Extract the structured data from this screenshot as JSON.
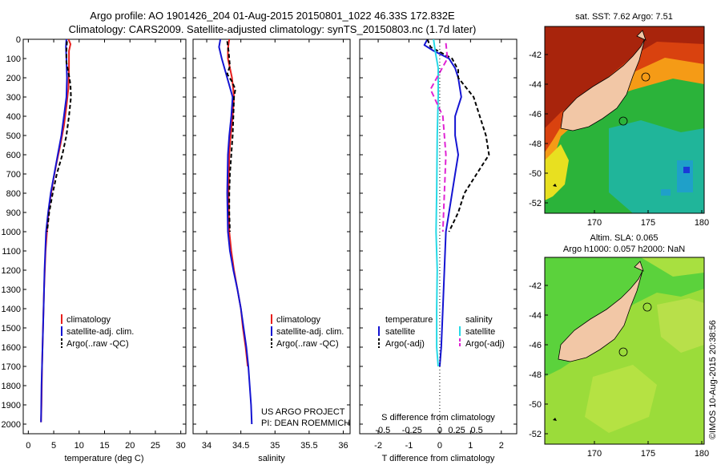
{
  "header": {
    "title_line1": "Argo profile: AO 1901426_204 01-Aug-2015 20150801_1022 46.33S 172.832E",
    "title_line2": "Climatology: CARS2009. Satellite-adjusted climatology: synTS_20150803.nc (1.7d later)"
  },
  "credits": {
    "project": "US ARGO PROJECT",
    "pi": "PI: DEAN ROEMMICH"
  },
  "watermark": "©IMOS 10-Aug-2015 20:38:56",
  "colors": {
    "climatology": "#e8201e",
    "satellite": "#1414d2",
    "argo": "#000000",
    "s_satellite": "#27d9e6",
    "s_argo": "#e024d4",
    "land": "#f2c7a6"
  },
  "chart_data": [
    {
      "type": "line",
      "id": "temperature",
      "xlabel": "temperature (deg C)",
      "xlim": [
        -1,
        31
      ],
      "ylim": [
        2050,
        0
      ],
      "xticks": [
        0,
        5,
        10,
        15,
        20,
        25,
        30
      ],
      "yticks": [
        0,
        100,
        200,
        300,
        400,
        500,
        600,
        700,
        800,
        900,
        1000,
        1100,
        1200,
        1300,
        1400,
        1500,
        1600,
        1700,
        1800,
        1900,
        2000
      ],
      "legend": [
        "climatology",
        "satellite-adj. clim.",
        "Argo(..raw -QC)"
      ],
      "series": [
        {
          "name": "climatology",
          "color": "#e8201e",
          "dash": "",
          "points": [
            [
              7.9,
              0
            ],
            [
              8.3,
              25
            ],
            [
              8.0,
              60
            ],
            [
              8.0,
              150
            ],
            [
              7.9,
              250
            ],
            [
              7.5,
              350
            ],
            [
              7.0,
              450
            ],
            [
              6.3,
              550
            ],
            [
              5.5,
              650
            ],
            [
              4.8,
              750
            ],
            [
              4.2,
              850
            ],
            [
              3.8,
              950
            ],
            [
              3.4,
              1100
            ],
            [
              3.1,
              1300
            ],
            [
              2.9,
              1500
            ],
            [
              2.7,
              1700
            ],
            [
              2.6,
              1900
            ],
            [
              2.5,
              1990
            ]
          ]
        },
        {
          "name": "satellite-adj. clim.",
          "color": "#1414d2",
          "dash": "",
          "points": [
            [
              7.5,
              0
            ],
            [
              7.4,
              40
            ],
            [
              7.5,
              100
            ],
            [
              7.6,
              200
            ],
            [
              7.5,
              300
            ],
            [
              7.0,
              400
            ],
            [
              6.5,
              500
            ],
            [
              5.8,
              600
            ],
            [
              5.1,
              700
            ],
            [
              4.4,
              800
            ],
            [
              3.9,
              900
            ],
            [
              3.5,
              1000
            ],
            [
              3.2,
              1200
            ],
            [
              3.0,
              1400
            ],
            [
              2.8,
              1600
            ],
            [
              2.6,
              1800
            ],
            [
              2.5,
              1990
            ]
          ]
        },
        {
          "name": "Argo(..raw -QC)",
          "color": "#000000",
          "dash": "5,3",
          "points": [
            [
              7.6,
              10
            ],
            [
              7.5,
              60
            ],
            [
              7.5,
              120
            ],
            [
              8.1,
              200
            ],
            [
              8.3,
              240
            ],
            [
              8.4,
              300
            ],
            [
              8.0,
              400
            ],
            [
              7.5,
              500
            ],
            [
              6.7,
              600
            ],
            [
              5.6,
              700
            ],
            [
              4.8,
              800
            ],
            [
              4.1,
              900
            ],
            [
              3.7,
              1000
            ]
          ]
        }
      ]
    },
    {
      "type": "line",
      "id": "salinity",
      "xlabel": "salinity",
      "xlim": [
        33.8,
        36.1
      ],
      "ylim": [
        2050,
        0
      ],
      "xticks": [
        34,
        34.5,
        35,
        35.5,
        36
      ],
      "legend": [
        "climatology",
        "satellite-adj. clim.",
        "Argo(..raw -QC)"
      ],
      "series": [
        {
          "name": "climatology",
          "color": "#e8201e",
          "dash": "",
          "points": [
            [
              34.33,
              0
            ],
            [
              34.31,
              50
            ],
            [
              34.31,
              100
            ],
            [
              34.37,
              200
            ],
            [
              34.4,
              300
            ],
            [
              34.38,
              400
            ],
            [
              34.35,
              500
            ],
            [
              34.33,
              600
            ],
            [
              34.32,
              800
            ],
            [
              34.33,
              1000
            ],
            [
              34.36,
              1100
            ],
            [
              34.4,
              1200
            ],
            [
              34.45,
              1300
            ],
            [
              34.5,
              1400
            ],
            [
              34.53,
              1500
            ],
            [
              34.57,
              1600
            ],
            [
              34.6,
              1700
            ]
          ]
        },
        {
          "name": "satellite-adj. clim.",
          "color": "#1414d2",
          "dash": "",
          "points": [
            [
              34.2,
              0
            ],
            [
              34.18,
              40
            ],
            [
              34.22,
              100
            ],
            [
              34.3,
              200
            ],
            [
              34.38,
              300
            ],
            [
              34.36,
              400
            ],
            [
              34.33,
              500
            ],
            [
              34.31,
              600
            ],
            [
              34.3,
              800
            ],
            [
              34.31,
              1000
            ],
            [
              34.34,
              1100
            ],
            [
              34.39,
              1200
            ],
            [
              34.45,
              1300
            ],
            [
              34.5,
              1400
            ],
            [
              34.54,
              1500
            ],
            [
              34.58,
              1600
            ],
            [
              34.61,
              1700
            ],
            [
              34.63,
              1800
            ],
            [
              34.65,
              1900
            ],
            [
              34.66,
              2000
            ]
          ]
        },
        {
          "name": "Argo(..raw -QC)",
          "color": "#000000",
          "dash": "5,3",
          "points": [
            [
              34.3,
              10
            ],
            [
              34.32,
              60
            ],
            [
              34.34,
              140
            ],
            [
              34.3,
              180
            ],
            [
              34.37,
              220
            ],
            [
              34.42,
              260
            ],
            [
              34.4,
              300
            ],
            [
              34.39,
              400
            ],
            [
              34.38,
              500
            ],
            [
              34.36,
              600
            ],
            [
              34.34,
              700
            ],
            [
              34.33,
              800
            ],
            [
              34.33,
              900
            ],
            [
              34.34,
              1000
            ]
          ]
        }
      ]
    },
    {
      "type": "line",
      "id": "differences",
      "xlabel": "T difference from climatology",
      "xlabel_top": "S difference from climatology",
      "xlim": [
        -2.6,
        2.5
      ],
      "ylim": [
        2050,
        0
      ],
      "xticks": [
        -2,
        -1,
        0,
        1,
        2
      ],
      "s_ticks": [
        {
          "label": "-0.5",
          "at": -1.85
        },
        {
          "label": "-0.25",
          "at": -0.9
        },
        {
          "label": "0",
          "at": 0
        },
        {
          "label": "0.25",
          "at": 0.55
        },
        {
          "label": "0.5",
          "at": 1.2
        }
      ],
      "legend_headers": [
        "temperature",
        "salinity"
      ],
      "legend": [
        "satellite",
        "Argo(-adj)",
        "satellite",
        "Argo(-adj)"
      ],
      "series": [
        {
          "name": "satellite",
          "color": "#1414d2",
          "dash": "",
          "points": [
            [
              -0.4,
              0
            ],
            [
              -0.5,
              30
            ],
            [
              -0.2,
              60
            ],
            [
              0.3,
              100
            ],
            [
              0.5,
              150
            ],
            [
              0.6,
              200
            ],
            [
              0.7,
              300
            ],
            [
              0.5,
              400
            ],
            [
              0.5,
              500
            ],
            [
              0.6,
              600
            ],
            [
              0.5,
              700
            ],
            [
              0.4,
              800
            ],
            [
              0.3,
              900
            ],
            [
              0.2,
              1000
            ],
            [
              0.15,
              1200
            ],
            [
              0.1,
              1400
            ],
            [
              0.05,
              1600
            ],
            [
              0.0,
              1700
            ]
          ]
        },
        {
          "name": "Argo(-adj)",
          "color": "#000000",
          "dash": "5,3",
          "points": [
            [
              -0.4,
              0
            ],
            [
              -0.3,
              40
            ],
            [
              0.4,
              100
            ],
            [
              0.6,
              160
            ],
            [
              0.6,
              200
            ],
            [
              0.9,
              260
            ],
            [
              1.1,
              300
            ],
            [
              1.3,
              400
            ],
            [
              1.5,
              500
            ],
            [
              1.6,
              600
            ],
            [
              1.2,
              700
            ],
            [
              0.8,
              800
            ],
            [
              0.6,
              900
            ],
            [
              0.3,
              1000
            ]
          ]
        },
        {
          "name": "satellite",
          "color": "#27d9e6",
          "dash": "",
          "points": [
            [
              -0.2,
              0
            ],
            [
              -0.15,
              60
            ],
            [
              -0.05,
              150
            ],
            [
              -0.05,
              300
            ],
            [
              -0.08,
              500
            ],
            [
              -0.1,
              800
            ],
            [
              -0.12,
              1000
            ],
            [
              -0.08,
              1200
            ],
            [
              -0.1,
              1400
            ],
            [
              -0.1,
              1600
            ],
            [
              -0.05,
              1700
            ]
          ]
        },
        {
          "name": "Argo(-adj)",
          "color": "#e024d4",
          "dash": "7,4",
          "points": [
            [
              0.2,
              20
            ],
            [
              0.25,
              100
            ],
            [
              -0.3,
              260
            ],
            [
              0.1,
              400
            ],
            [
              0.2,
              600
            ],
            [
              0.1,
              1000
            ]
          ]
        }
      ]
    }
  ],
  "maps": [
    {
      "title": "sat. SST: 7.62 Argo: 7.51",
      "title2": "",
      "lat_ticks": [
        "-42",
        "-44",
        "-46",
        "-48",
        "-50",
        "-52"
      ],
      "lon_ticks": [
        "170",
        "175",
        "180"
      ]
    },
    {
      "title": "Altim. SLA: 0.065",
      "title2": "Argo h1000: 0.057 h2000: NaN",
      "lat_ticks": [
        "-42",
        "-44",
        "-46",
        "-48",
        "-50",
        "-52"
      ],
      "lon_ticks": [
        "170",
        "175",
        "180"
      ]
    }
  ]
}
